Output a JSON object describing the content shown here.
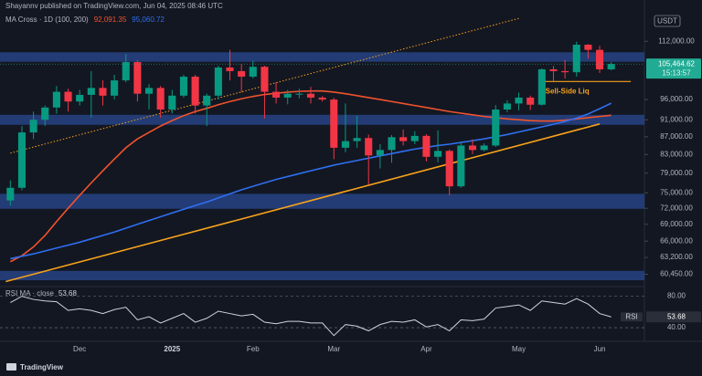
{
  "chart_data": {
    "type": "candlestick",
    "header": "Shayannv published on TradingView.com, Jun 04, 2025 08:46 UTC",
    "indicator": "MA Cross · 1D (100, 200)",
    "currency": "USDT",
    "brand": "TradingView",
    "log_scale": true,
    "up_color": "#089981",
    "down_color": "#f23645",
    "ylim": [
      58800,
      120500
    ],
    "yticks": [
      {
        "value": 112000,
        "label": "112,000.00"
      },
      {
        "value": 96000,
        "label": "96,000.00"
      },
      {
        "value": 91000,
        "label": "91,000.00"
      },
      {
        "value": 87000,
        "label": "87,000.00"
      },
      {
        "value": 83000,
        "label": "83,000.00"
      },
      {
        "value": 79000,
        "label": "79,000.00"
      },
      {
        "value": 75000,
        "label": "75,000.00"
      },
      {
        "value": 72000,
        "label": "72,000.00"
      },
      {
        "value": 69000,
        "label": "69,000.00"
      },
      {
        "value": 66000,
        "label": "66,000.00"
      },
      {
        "value": 63200,
        "label": "63,200.00"
      },
      {
        "value": 60450,
        "label": "60,450.00"
      }
    ],
    "categories": [
      null,
      null,
      null,
      null,
      null,
      null,
      "Dec",
      null,
      null,
      null,
      null,
      null,
      null,
      null,
      "2025",
      null,
      null,
      null,
      null,
      null,
      null,
      "Feb",
      null,
      null,
      null,
      null,
      null,
      null,
      "Mar",
      null,
      null,
      null,
      null,
      null,
      null,
      null,
      "Apr",
      null,
      null,
      null,
      null,
      null,
      null,
      null,
      "May",
      null,
      null,
      null,
      null,
      null,
      null,
      "Jun",
      null
    ],
    "open": [
      73500,
      76000,
      88000,
      91000,
      94000,
      98000,
      95500,
      97200,
      99000,
      97000,
      101000,
      106000,
      97500,
      99000,
      93500,
      97000,
      102000,
      94500,
      97000,
      104500,
      103500,
      102000,
      104700,
      98000,
      96500,
      97500,
      97500,
      96500,
      96000,
      84500,
      86000,
      86700,
      82800,
      84000,
      86900,
      86000,
      87200,
      82500,
      83800,
      76300,
      85000,
      84000,
      85000,
      93500,
      95000,
      96500,
      94700,
      104000,
      103500,
      103200,
      111000,
      109500,
      104000
    ],
    "high": [
      77500,
      89500,
      93000,
      94500,
      99500,
      98800,
      98500,
      103500,
      101000,
      102500,
      108300,
      106500,
      100000,
      99500,
      98500,
      102500,
      102500,
      97500,
      105000,
      109500,
      105500,
      106400,
      105000,
      100500,
      98500,
      98800,
      99300,
      96900,
      96500,
      95000,
      92000,
      87500,
      85300,
      87400,
      88700,
      88300,
      87600,
      88500,
      84100,
      85800,
      86400,
      85500,
      94600,
      95800,
      97800,
      97000,
      104300,
      104900,
      106600,
      111900,
      111200,
      110700,
      106000
    ],
    "low": [
      72500,
      75500,
      86500,
      89500,
      92500,
      93000,
      94500,
      91500,
      94500,
      96000,
      100500,
      95500,
      93500,
      91500,
      92500,
      96500,
      92500,
      89500,
      96000,
      101000,
      97800,
      101500,
      91300,
      95000,
      94800,
      96300,
      95000,
      95500,
      82000,
      83500,
      84500,
      76600,
      80000,
      81200,
      85000,
      85300,
      81500,
      81300,
      74500,
      76000,
      83100,
      83700,
      84700,
      92800,
      93300,
      93400,
      94500,
      100800,
      101500,
      102000,
      107000,
      103000,
      103700
    ],
    "close": [
      76000,
      88000,
      91000,
      94000,
      98000,
      95500,
      97200,
      99000,
      97000,
      101000,
      106000,
      97500,
      99000,
      93500,
      97000,
      102000,
      94500,
      97000,
      104500,
      103500,
      102000,
      104700,
      98000,
      96500,
      97500,
      97500,
      96500,
      96000,
      84500,
      86000,
      86700,
      82800,
      84000,
      86900,
      86000,
      87200,
      82500,
      83800,
      76300,
      85000,
      84000,
      85000,
      93500,
      95000,
      96500,
      94700,
      104000,
      103500,
      103200,
      111000,
      109500,
      104000,
      105464.62
    ],
    "last_price": {
      "value": 105464.62,
      "label": "105,464.62",
      "countdown": "15:13:57",
      "color": "#22ab94"
    },
    "series": [
      {
        "color": "#f0532d",
        "values": [
          62500,
          63500,
          65000,
          67000,
          69500,
          72000,
          74500,
          77000,
          79500,
          82000,
          84500,
          86500,
          88000,
          89500,
          90800,
          92000,
          93000,
          93800,
          94700,
          95500,
          96200,
          96800,
          97300,
          97600,
          97900,
          98100,
          98200,
          98200,
          97900,
          97500,
          97000,
          96500,
          96000,
          95500,
          95000,
          94500,
          94000,
          93500,
          93000,
          92600,
          92200,
          91800,
          91500,
          91200,
          91000,
          90800,
          90700,
          90700,
          90900,
          91200,
          91500,
          91800,
          92091.35
        ],
        "value_labels": [
          null,
          null,
          null,
          null,
          null,
          null,
          null,
          null,
          null,
          null,
          null,
          null,
          null,
          null,
          null,
          null,
          null,
          null,
          null,
          null,
          null,
          null,
          null,
          null,
          null,
          null,
          null,
          null,
          null,
          null,
          null,
          null,
          null,
          null,
          null,
          null,
          null,
          null,
          null,
          null,
          null,
          null,
          null,
          null,
          null,
          null,
          null,
          null,
          null,
          null,
          null,
          null,
          "92,091.35"
        ]
      },
      {
        "color": "#2f6ff0",
        "values": [
          63000,
          63400,
          63800,
          64300,
          64800,
          65300,
          65800,
          66400,
          67000,
          67600,
          68300,
          69000,
          69700,
          70400,
          71100,
          71800,
          72500,
          73200,
          74000,
          74800,
          75600,
          76300,
          77000,
          77700,
          78300,
          78900,
          79500,
          80100,
          80700,
          81200,
          81700,
          82200,
          82700,
          83200,
          83700,
          84200,
          84600,
          85000,
          85300,
          85700,
          86100,
          86500,
          87000,
          87500,
          88100,
          88700,
          89300,
          89900,
          90600,
          91400,
          92400,
          93700,
          95060.72
        ],
        "value_labels": [
          null,
          null,
          null,
          null,
          null,
          null,
          null,
          null,
          null,
          null,
          null,
          null,
          null,
          null,
          null,
          null,
          null,
          null,
          null,
          null,
          null,
          null,
          null,
          null,
          null,
          null,
          null,
          null,
          null,
          null,
          null,
          null,
          null,
          null,
          null,
          null,
          null,
          null,
          null,
          null,
          null,
          null,
          null,
          null,
          null,
          null,
          null,
          null,
          null,
          null,
          null,
          null,
          "95,060.72"
        ]
      }
    ],
    "zones": [
      {
        "top": 108800,
        "bottom": 106100,
        "color": "#2a4a92"
      },
      {
        "top": 92200,
        "bottom": 89800,
        "color": "#2a4a92"
      },
      {
        "top": 74800,
        "bottom": 71900,
        "color": "#2a4a92"
      },
      {
        "top": 61000,
        "bottom": 59500,
        "color": "#2a4a92"
      }
    ],
    "trendlines": [
      {
        "color": "#f7a21b",
        "dashed": false,
        "from": {
          "at": -0.4,
          "value": 59300
        },
        "to": {
          "at": 51,
          "value": 90000
        }
      },
      {
        "color": "#f7a21b",
        "dashed": true,
        "from": {
          "at": 0,
          "value": 83300
        },
        "to": {
          "at": 44,
          "value": 119000
        }
      }
    ],
    "levels": [
      {
        "text": "Sell-Side Liq",
        "value": 100700,
        "from": 46.3,
        "to": 53.7,
        "color": "#f7a21b"
      }
    ],
    "rsi": {
      "name": "RSI",
      "title": "RSI MA · close",
      "color": "#d1d4dc",
      "ylim": [
        25,
        90
      ],
      "yticks": [
        {
          "value": 80,
          "label": "80.00"
        },
        {
          "value": 40,
          "label": "40.00"
        }
      ],
      "values": [
        72,
        80,
        76,
        74,
        73,
        62,
        64,
        62,
        58,
        63,
        66,
        50,
        54,
        46,
        52,
        58,
        47,
        52,
        61,
        58,
        55,
        57,
        47,
        45,
        48,
        48,
        46,
        46,
        30,
        44,
        42,
        36,
        44,
        48,
        47,
        50,
        41,
        44,
        36,
        50,
        49,
        51,
        65,
        67,
        69,
        62,
        74,
        72,
        70,
        77,
        70,
        58,
        53.68
      ],
      "value_labels": [
        null,
        null,
        null,
        null,
        null,
        null,
        null,
        null,
        null,
        null,
        null,
        null,
        null,
        null,
        null,
        null,
        null,
        null,
        null,
        null,
        null,
        null,
        null,
        null,
        null,
        null,
        null,
        null,
        null,
        null,
        null,
        null,
        null,
        null,
        null,
        null,
        null,
        null,
        null,
        null,
        null,
        null,
        null,
        null,
        null,
        null,
        null,
        null,
        null,
        null,
        null,
        null,
        "53.68"
      ]
    }
  }
}
